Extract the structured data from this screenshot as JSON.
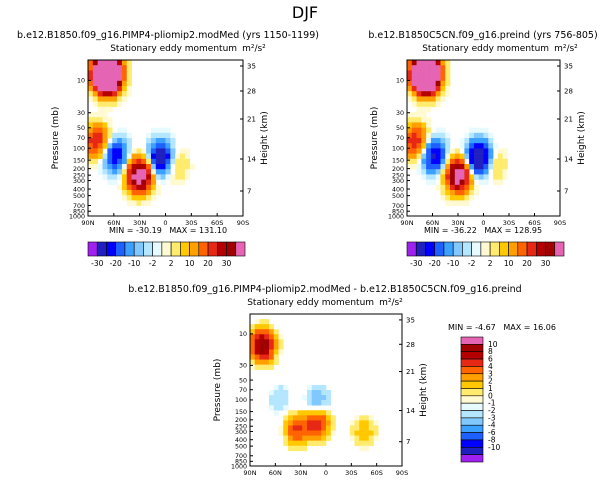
{
  "page_title": "DJF",
  "colors": {
    "cb1": [
      "#a020f0",
      "#2020c0",
      "#0000ff",
      "#1e5fff",
      "#3ca0ff",
      "#80c8ff",
      "#b4e6ff",
      "#e6faff",
      "#fffad2",
      "#ffeb6e",
      "#ffc800",
      "#ffa000",
      "#ff6400",
      "#e62814",
      "#b40000",
      "#a00000",
      "#e664b4"
    ],
    "cb2": [
      "#a020f0",
      "#2020c0",
      "#0000ff",
      "#1e5fff",
      "#3ca0ff",
      "#80c8ff",
      "#b4e6ff",
      "#e6faff",
      "#fffad2",
      "#ffeb6e",
      "#ffc800",
      "#ffa000",
      "#ff6400",
      "#e62814",
      "#b40000",
      "#a00000",
      "#e664b4"
    ]
  },
  "colorbar1": {
    "labels": [
      "-30",
      "-20",
      "-10",
      "-2",
      "2",
      "10",
      "20",
      "30"
    ]
  },
  "colorbar2": {
    "labels": [
      "10",
      "8",
      "6",
      "4",
      "3",
      "2",
      "1",
      "0",
      "-1",
      "-2",
      "-3",
      "-4",
      "-6",
      "-8",
      "-10"
    ]
  },
  "chart_data": [
    {
      "type": "heatmap",
      "title": "b.e12.B1850.f09_g16.PIMP4-pliomip2.modMed (yrs 1150-1199)",
      "subtitle": "Stationary eddy momentum",
      "units": "m²/s²",
      "xlabel": "",
      "ylabel": "Pressure (mb)",
      "ylabel_right": "Height (km)",
      "x_ticks": [
        "90N",
        "60N",
        "30N",
        "0",
        "30S",
        "60S",
        "90S"
      ],
      "y_ticks": [
        "10",
        "30",
        "50",
        "70",
        "100",
        "150",
        "200",
        "250",
        "300",
        "400",
        "500",
        "700",
        "850",
        "1000"
      ],
      "y_right_ticks": [
        "35",
        "28",
        "21",
        "14",
        "7"
      ],
      "ylim": [
        1000,
        5
      ],
      "stats": "MIN = -30.19   MAX = 131.10",
      "features": [
        {
          "lat": 68,
          "p": 8,
          "value": 110
        },
        {
          "lat": 30,
          "p": 250,
          "value": 40
        },
        {
          "lat": 58,
          "p": 130,
          "value": -20
        },
        {
          "lat": 5,
          "p": 140,
          "value": -28
        },
        {
          "lat": -10,
          "p": 170,
          "value": 8
        },
        {
          "lat": 80,
          "p": 80,
          "value": 20
        }
      ]
    },
    {
      "type": "heatmap",
      "title": "b.e12.B1850C5CN.f09_g16.preind (yrs 756-805)",
      "subtitle": "Stationary eddy momentum",
      "units": "m²/s²",
      "xlabel": "",
      "ylabel": "Pressure (mb)",
      "ylabel_right": "Height (km)",
      "x_ticks": [
        "90N",
        "60N",
        "30N",
        "0",
        "30S",
        "60S",
        "90S"
      ],
      "y_ticks": [
        "10",
        "30",
        "50",
        "70",
        "100",
        "150",
        "200",
        "250",
        "300",
        "400",
        "500",
        "700",
        "850",
        "1000"
      ],
      "y_right_ticks": [
        "35",
        "28",
        "21",
        "14",
        "7"
      ],
      "ylim": [
        1000,
        5
      ],
      "stats": "MIN = -36.22   MAX = 128.95",
      "features": [
        {
          "lat": 68,
          "p": 8,
          "value": 110
        },
        {
          "lat": 30,
          "p": 250,
          "value": 38
        },
        {
          "lat": 58,
          "p": 130,
          "value": -22
        },
        {
          "lat": 5,
          "p": 140,
          "value": -34
        },
        {
          "lat": -10,
          "p": 170,
          "value": 8
        },
        {
          "lat": 80,
          "p": 80,
          "value": 20
        }
      ]
    },
    {
      "type": "heatmap",
      "title": "b.e12.B1850.f09_g16.PIMP4-pliomip2.modMed - b.e12.B1850C5CN.f09_g16.preind",
      "subtitle": "Stationary eddy momentum",
      "units": "m²/s²",
      "xlabel": "",
      "ylabel": "Pressure (mb)",
      "ylabel_right": "Height (km)",
      "x_ticks": [
        "90N",
        "60N",
        "30N",
        "0",
        "30S",
        "60S",
        "90S"
      ],
      "y_ticks": [
        "10",
        "30",
        "50",
        "70",
        "100",
        "150",
        "200",
        "250",
        "300",
        "400",
        "500",
        "700",
        "850",
        "1000"
      ],
      "y_right_ticks": [
        "35",
        "28",
        "21",
        "14",
        "7"
      ],
      "ylim": [
        1000,
        5
      ],
      "stats": "MIN = -4.67   MAX = 16.06",
      "features": [
        {
          "lat": 75,
          "p": 15,
          "value": 12
        },
        {
          "lat": 35,
          "p": 280,
          "value": 6
        },
        {
          "lat": 10,
          "p": 220,
          "value": 8
        },
        {
          "lat": 10,
          "p": 110,
          "value": -4
        },
        {
          "lat": -45,
          "p": 300,
          "value": 3
        },
        {
          "lat": 55,
          "p": 100,
          "value": -2
        }
      ]
    }
  ]
}
